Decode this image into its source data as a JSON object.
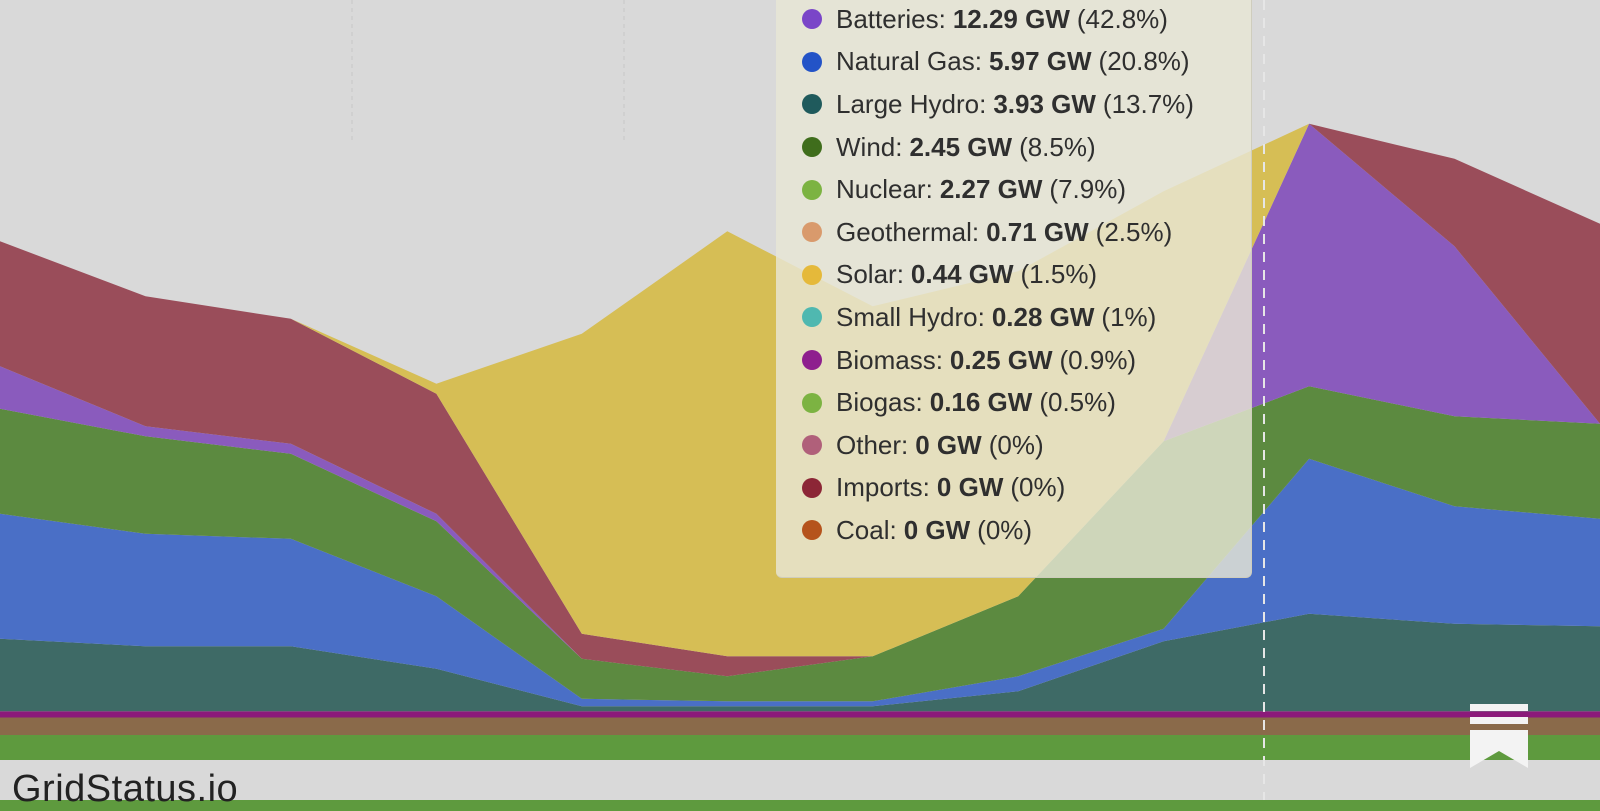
{
  "brand": "GridStatus.io",
  "icons": {
    "bookmark": "bookmark-icon"
  },
  "chart_data": {
    "type": "area",
    "title": "",
    "xlabel": "",
    "ylabel": "",
    "stacked": true,
    "cursor_x": 0.79,
    "series": [
      {
        "key": "other_base",
        "color": "#5e9a3e",
        "values": [
          1,
          1,
          1,
          1,
          1,
          1,
          1,
          1,
          1,
          1,
          1,
          1
        ]
      },
      {
        "key": "geo",
        "color": "#8a6a4a",
        "values": [
          0.7,
          0.7,
          0.7,
          0.7,
          0.7,
          0.7,
          0.7,
          0.7,
          0.7,
          0.7,
          0.7,
          0.7
        ]
      },
      {
        "key": "bio",
        "color": "#8b1a7a",
        "values": [
          0.25,
          0.25,
          0.25,
          0.25,
          0.25,
          0.25,
          0.25,
          0.25,
          0.25,
          0.25,
          0.25,
          0.25
        ]
      },
      {
        "key": "hydro",
        "color": "#3e6a66",
        "values": [
          2.9,
          2.6,
          2.6,
          1.7,
          0.2,
          0.2,
          0.2,
          0.8,
          2.8,
          3.9,
          3.5,
          3.4
        ]
      },
      {
        "key": "gas",
        "color": "#4a6fc6",
        "values": [
          5.0,
          4.5,
          4.3,
          2.9,
          0.3,
          0.2,
          0.2,
          0.6,
          0.5,
          6.2,
          4.7,
          4.3
        ]
      },
      {
        "key": "wind",
        "color": "#5c8a40",
        "values": [
          4.2,
          3.9,
          3.4,
          3.0,
          1.6,
          1.0,
          1.8,
          3.2,
          7.5,
          2.9,
          3.6,
          3.8
        ]
      },
      {
        "key": "batt",
        "color": "#8a5bbd",
        "values": [
          1.7,
          0.4,
          0.4,
          0.3,
          0,
          0,
          0,
          0,
          0,
          10.5,
          6.8,
          0
        ]
      },
      {
        "key": "imports",
        "color": "#9a4d5a",
        "values": [
          5.0,
          5.2,
          5.0,
          4.8,
          1.0,
          0.8,
          0,
          0,
          0,
          0,
          3.5,
          8.0
        ]
      },
      {
        "key": "solar",
        "color": "#d6be55",
        "values": [
          0,
          0,
          0,
          0.4,
          12,
          17,
          14,
          13,
          10,
          0,
          0,
          0
        ]
      }
    ]
  },
  "tooltip": {
    "rows": [
      {
        "name": "Batteries:",
        "value": "12.29 GW",
        "pct": "(42.8%)",
        "color": "#7a45c8"
      },
      {
        "name": "Natural Gas:",
        "value": "5.97 GW",
        "pct": "(20.8%)",
        "color": "#2353c7"
      },
      {
        "name": "Large Hydro:",
        "value": "3.93 GW",
        "pct": "(13.7%)",
        "color": "#1f5a5c"
      },
      {
        "name": "Wind:",
        "value": "2.45 GW",
        "pct": "(8.5%)",
        "color": "#3f6d1c"
      },
      {
        "name": "Nuclear:",
        "value": "2.27 GW",
        "pct": "(7.9%)",
        "color": "#7cb342"
      },
      {
        "name": "Geothermal:",
        "value": "0.71 GW",
        "pct": "(2.5%)",
        "color": "#d99a6c"
      },
      {
        "name": "Solar:",
        "value": "0.44 GW",
        "pct": "(1.5%)",
        "color": "#e5b93a"
      },
      {
        "name": "Small Hydro:",
        "value": "0.28 GW",
        "pct": "(1%)",
        "color": "#4fb8b0"
      },
      {
        "name": "Biomass:",
        "value": "0.25 GW",
        "pct": "(0.9%)",
        "color": "#8e1f8e"
      },
      {
        "name": "Biogas:",
        "value": "0.16 GW",
        "pct": "(0.5%)",
        "color": "#7cb342"
      },
      {
        "name": "Other:",
        "value": "0 GW",
        "pct": "(0%)",
        "color": "#b0607a"
      },
      {
        "name": "Imports:",
        "value": "0 GW",
        "pct": "(0%)",
        "color": "#8c2636"
      },
      {
        "name": "Coal:",
        "value": "0 GW",
        "pct": "(0%)",
        "color": "#b5531c"
      }
    ]
  }
}
